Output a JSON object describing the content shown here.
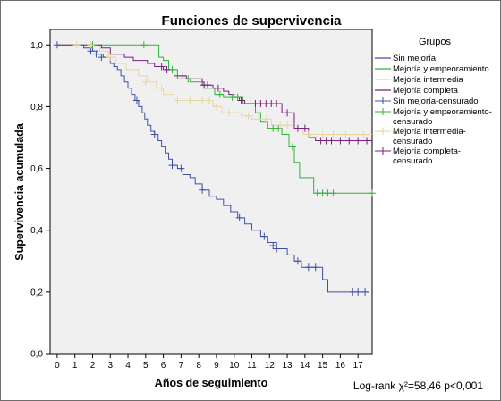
{
  "chart_data": {
    "type": "line",
    "step": true,
    "title": "Funciones de supervivencia",
    "xlabel": "Años de seguimiento",
    "ylabel": "Supervivencia acumulada",
    "xlim": [
      -0.4,
      17.8
    ],
    "ylim": [
      0,
      1.05
    ],
    "x_ticks": [
      "0",
      "1",
      "2",
      "3",
      "4",
      "5",
      "6",
      "7",
      "8",
      "9",
      "10",
      "11",
      "12",
      "13",
      "14",
      "15",
      "16",
      "17"
    ],
    "y_ticks": [
      "0,0",
      "0,2",
      "0,4",
      "0,6",
      "0,8",
      "1,0"
    ],
    "grid": false,
    "legend_position": "right",
    "legend_title": "Grupos",
    "legend": [
      {
        "label": "Sin mejoría",
        "color": "#3f4fa8",
        "marker": "line"
      },
      {
        "label": "Mejoría y empeoramiento",
        "color": "#2fb33a",
        "marker": "line"
      },
      {
        "label": "Mejoría intermedia",
        "color": "#e6d6a0",
        "marker": "line"
      },
      {
        "label": "Mejoría completa",
        "color": "#7b1f7b",
        "marker": "line"
      },
      {
        "label": "Sin mejoría-censurado",
        "color": "#3f4fa8",
        "marker": "plus"
      },
      {
        "label": "Mejoría y empeoramiento-censurado",
        "color": "#2fb33a",
        "marker": "plus"
      },
      {
        "label": "Mejoría intermedia-censurado",
        "color": "#e6d6a0",
        "marker": "plus"
      },
      {
        "label": "Mejoría completa-censurado",
        "color": "#7b1f7b",
        "marker": "plus"
      }
    ],
    "series": [
      {
        "name": "Sin mejoría",
        "color": "#3f4fa8",
        "steps": [
          [
            0,
            1.0
          ],
          [
            1.5,
            0.99
          ],
          [
            2.0,
            0.98
          ],
          [
            2.3,
            0.97
          ],
          [
            2.6,
            0.96
          ],
          [
            3.0,
            0.94
          ],
          [
            3.2,
            0.93
          ],
          [
            3.4,
            0.92
          ],
          [
            3.6,
            0.9
          ],
          [
            3.8,
            0.88
          ],
          [
            4.0,
            0.86
          ],
          [
            4.2,
            0.84
          ],
          [
            4.4,
            0.82
          ],
          [
            4.6,
            0.8
          ],
          [
            4.8,
            0.78
          ],
          [
            4.95,
            0.76
          ],
          [
            5.1,
            0.74
          ],
          [
            5.3,
            0.72
          ],
          [
            5.5,
            0.71
          ],
          [
            5.7,
            0.69
          ],
          [
            5.9,
            0.67
          ],
          [
            6.1,
            0.65
          ],
          [
            6.3,
            0.63
          ],
          [
            6.5,
            0.61
          ],
          [
            6.8,
            0.6
          ],
          [
            7.1,
            0.58
          ],
          [
            7.5,
            0.57
          ],
          [
            7.8,
            0.55
          ],
          [
            8.2,
            0.53
          ],
          [
            8.6,
            0.51
          ],
          [
            9.0,
            0.5
          ],
          [
            9.4,
            0.48
          ],
          [
            9.8,
            0.46
          ],
          [
            10.2,
            0.44
          ],
          [
            10.6,
            0.42
          ],
          [
            11.0,
            0.4
          ],
          [
            11.5,
            0.38
          ],
          [
            11.9,
            0.36
          ],
          [
            12.4,
            0.34
          ],
          [
            13.0,
            0.32
          ],
          [
            13.4,
            0.3
          ],
          [
            13.8,
            0.28
          ],
          [
            15.0,
            0.24
          ],
          [
            15.3,
            0.2
          ],
          [
            17.6,
            0.2
          ]
        ],
        "censored": [
          [
            0.0,
            1.0
          ],
          [
            1.9,
            0.98
          ],
          [
            2.2,
            0.97
          ],
          [
            2.5,
            0.96
          ],
          [
            4.5,
            0.82
          ],
          [
            5.5,
            0.71
          ],
          [
            6.5,
            0.61
          ],
          [
            7.0,
            0.6
          ],
          [
            8.2,
            0.53
          ],
          [
            10.3,
            0.44
          ],
          [
            11.7,
            0.38
          ],
          [
            12.2,
            0.35
          ],
          [
            12.4,
            0.34
          ],
          [
            13.6,
            0.3
          ],
          [
            14.2,
            0.28
          ],
          [
            14.6,
            0.28
          ],
          [
            16.7,
            0.2
          ],
          [
            17.0,
            0.2
          ],
          [
            17.4,
            0.2
          ]
        ]
      },
      {
        "name": "Mejoría y empeoramiento",
        "color": "#2fb33a",
        "steps": [
          [
            0,
            1.0
          ],
          [
            5.7,
            1.0
          ],
          [
            5.75,
            0.96
          ],
          [
            6.0,
            0.95
          ],
          [
            6.3,
            0.92
          ],
          [
            6.8,
            0.89
          ],
          [
            7.5,
            0.88
          ],
          [
            8.3,
            0.86
          ],
          [
            8.9,
            0.84
          ],
          [
            9.4,
            0.83
          ],
          [
            10.5,
            0.81
          ],
          [
            11.2,
            0.78
          ],
          [
            11.5,
            0.75
          ],
          [
            11.9,
            0.73
          ],
          [
            12.7,
            0.71
          ],
          [
            13.1,
            0.67
          ],
          [
            13.4,
            0.62
          ],
          [
            13.7,
            0.57
          ],
          [
            14.5,
            0.52
          ],
          [
            17.8,
            0.52
          ]
        ],
        "censored": [
          [
            2.0,
            1.0
          ],
          [
            4.9,
            1.0
          ],
          [
            6.5,
            0.92
          ],
          [
            7.4,
            0.89
          ],
          [
            9.2,
            0.84
          ],
          [
            9.9,
            0.83
          ],
          [
            10.2,
            0.83
          ],
          [
            11.4,
            0.78
          ],
          [
            12.2,
            0.73
          ],
          [
            12.5,
            0.73
          ],
          [
            13.3,
            0.67
          ],
          [
            14.7,
            0.52
          ],
          [
            15.0,
            0.52
          ],
          [
            15.3,
            0.52
          ],
          [
            15.6,
            0.52
          ],
          [
            17.8,
            0.52
          ]
        ]
      },
      {
        "name": "Mejoría intermedia",
        "color": "#e6d6a0",
        "steps": [
          [
            0,
            1.0
          ],
          [
            2.4,
            0.98
          ],
          [
            2.9,
            0.96
          ],
          [
            3.3,
            0.94
          ],
          [
            3.9,
            0.92
          ],
          [
            4.6,
            0.9
          ],
          [
            5.1,
            0.88
          ],
          [
            5.6,
            0.86
          ],
          [
            6.0,
            0.84
          ],
          [
            6.6,
            0.82
          ],
          [
            8.8,
            0.8
          ],
          [
            9.3,
            0.78
          ],
          [
            10.4,
            0.77
          ],
          [
            11.0,
            0.76
          ],
          [
            12.1,
            0.74
          ],
          [
            13.4,
            0.73
          ],
          [
            13.9,
            0.71
          ],
          [
            17.8,
            0.71
          ]
        ],
        "censored": [
          [
            1.1,
            1.0
          ],
          [
            1.9,
            1.0
          ],
          [
            3.0,
            0.96
          ],
          [
            5.0,
            0.88
          ],
          [
            5.9,
            0.86
          ],
          [
            6.8,
            0.82
          ],
          [
            7.5,
            0.82
          ],
          [
            8.2,
            0.82
          ],
          [
            8.6,
            0.82
          ],
          [
            9.0,
            0.8
          ],
          [
            9.7,
            0.78
          ],
          [
            10.0,
            0.78
          ],
          [
            10.8,
            0.77
          ],
          [
            11.4,
            0.76
          ],
          [
            11.8,
            0.76
          ],
          [
            12.6,
            0.74
          ],
          [
            13.0,
            0.74
          ],
          [
            14.2,
            0.71
          ],
          [
            15.0,
            0.71
          ],
          [
            15.6,
            0.71
          ],
          [
            16.3,
            0.71
          ],
          [
            17.3,
            0.71
          ]
        ]
      },
      {
        "name": "Mejoría completa",
        "color": "#7b1f7b",
        "steps": [
          [
            0,
            1.0
          ],
          [
            2.5,
            0.99
          ],
          [
            3.0,
            0.97
          ],
          [
            3.8,
            0.96
          ],
          [
            4.3,
            0.95
          ],
          [
            5.1,
            0.94
          ],
          [
            5.5,
            0.93
          ],
          [
            6.0,
            0.92
          ],
          [
            6.6,
            0.9
          ],
          [
            7.3,
            0.89
          ],
          [
            8.2,
            0.87
          ],
          [
            8.8,
            0.86
          ],
          [
            9.4,
            0.85
          ],
          [
            9.7,
            0.84
          ],
          [
            10.0,
            0.83
          ],
          [
            10.3,
            0.82
          ],
          [
            10.6,
            0.81
          ],
          [
            12.7,
            0.78
          ],
          [
            13.4,
            0.73
          ],
          [
            14.2,
            0.7
          ],
          [
            14.6,
            0.69
          ],
          [
            17.8,
            0.69
          ]
        ],
        "censored": [
          [
            5.9,
            0.93
          ],
          [
            6.2,
            0.92
          ],
          [
            7.1,
            0.9
          ],
          [
            8.3,
            0.87
          ],
          [
            8.5,
            0.87
          ],
          [
            9.1,
            0.86
          ],
          [
            10.4,
            0.82
          ],
          [
            10.9,
            0.81
          ],
          [
            11.2,
            0.81
          ],
          [
            11.5,
            0.81
          ],
          [
            11.8,
            0.81
          ],
          [
            12.1,
            0.81
          ],
          [
            12.4,
            0.81
          ],
          [
            13.0,
            0.78
          ],
          [
            13.6,
            0.73
          ],
          [
            14.0,
            0.73
          ],
          [
            14.9,
            0.69
          ],
          [
            15.2,
            0.69
          ],
          [
            15.5,
            0.69
          ],
          [
            16.0,
            0.69
          ],
          [
            16.5,
            0.69
          ],
          [
            17.0,
            0.69
          ],
          [
            17.5,
            0.69
          ]
        ]
      }
    ],
    "annotation": "Log-rank χ²=58,46 p<0,001"
  },
  "colors": {
    "plot_background": "#f0f0f0",
    "axis": "#000000"
  }
}
